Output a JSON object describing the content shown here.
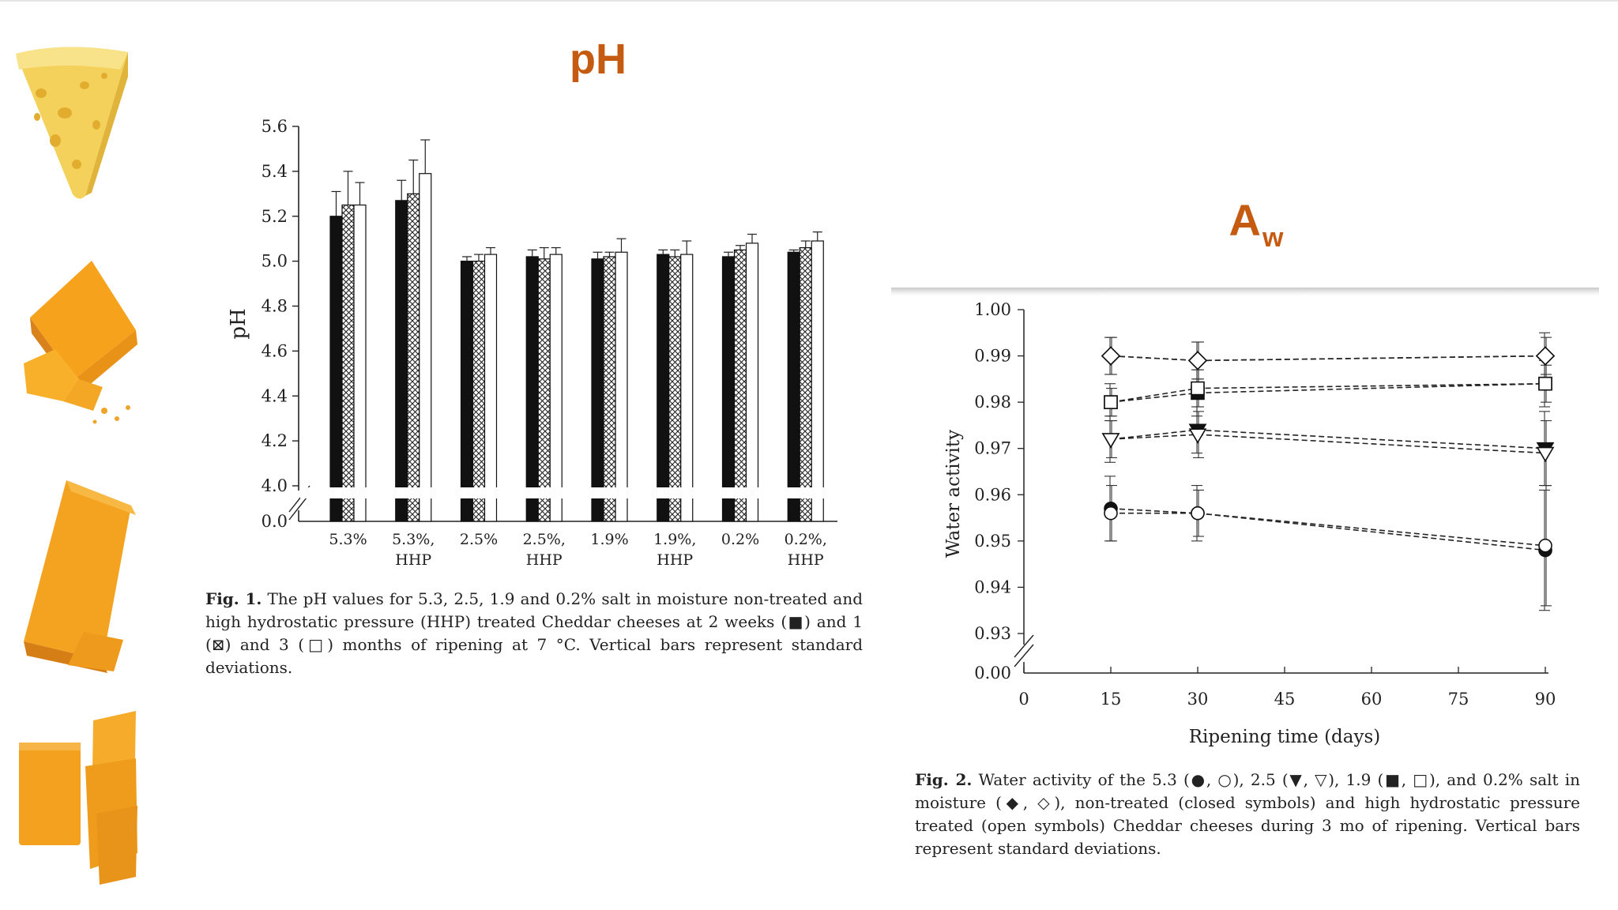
{
  "slide": {
    "title_ph": "pH",
    "title_aw_main": "A",
    "title_aw_sub": "w",
    "accent_color": "#c55a11",
    "cheese_icons": [
      "swiss-cheese-wedge-icon",
      "cheddar-block-with-crumbs-icon",
      "cheddar-slab-icon",
      "cheddar-slices-icon"
    ]
  },
  "chart_data": [
    {
      "type": "bar",
      "ylabel": "pH",
      "ylim": [
        4.0,
        5.6
      ],
      "y_ticks": [
        "5.6",
        "5.4",
        "5.2",
        "5.0",
        "4.8",
        "4.6",
        "4.4",
        "4.2",
        "4.0"
      ],
      "y_break_label": "0.0",
      "category_line1": [
        "5.3%",
        "5.3%,",
        "2.5%",
        "2.5%,",
        "1.9%",
        "1.9%,",
        "0.2%",
        "0.2%,"
      ],
      "category_line2": [
        "",
        "HHP",
        "",
        "HHP",
        "",
        "HHP",
        "",
        "HHP"
      ],
      "series": [
        {
          "name": "2 weeks",
          "pattern": "solid",
          "values": [
            5.2,
            5.27,
            5.0,
            5.02,
            5.01,
            5.03,
            5.02,
            5.04
          ],
          "sd": [
            0.11,
            0.09,
            0.02,
            0.03,
            0.03,
            0.02,
            0.02,
            0.01
          ]
        },
        {
          "name": "1 month",
          "pattern": "crosshatch",
          "values": [
            5.25,
            5.3,
            5.0,
            5.01,
            5.02,
            5.02,
            5.05,
            5.06
          ],
          "sd": [
            0.15,
            0.15,
            0.03,
            0.05,
            0.02,
            0.03,
            0.02,
            0.03
          ]
        },
        {
          "name": "3 months",
          "pattern": "open",
          "values": [
            5.25,
            5.39,
            5.03,
            5.03,
            5.04,
            5.03,
            5.08,
            5.09
          ],
          "sd": [
            0.1,
            0.15,
            0.03,
            0.03,
            0.06,
            0.06,
            0.04,
            0.04
          ]
        }
      ],
      "caption_label": "Fig. 1.",
      "caption_text_a": "The pH values for 5.3, 2.5, 1.9 and 0.2% salt in moisture non-treated and high hydrostatic pressure (HHP) treated Cheddar cheeses at 2 weeks (",
      "caption_text_b": ") and 1 (",
      "caption_text_c": ") and 3 (",
      "caption_text_d": ") months of ripening at 7 °C. Vertical bars represent standard deviations."
    },
    {
      "type": "line",
      "xlabel": "Ripening time (days)",
      "ylabel": "Water activity",
      "xlim": [
        0,
        90
      ],
      "ylim": [
        0.93,
        1.0
      ],
      "x_ticks": [
        "0",
        "15",
        "30",
        "45",
        "60",
        "75",
        "90"
      ],
      "y_ticks": [
        "1.00",
        "0.99",
        "0.98",
        "0.97",
        "0.96",
        "0.95",
        "0.94",
        "0.93"
      ],
      "y_break_label": "0.00",
      "x": [
        15,
        30,
        90
      ],
      "series": [
        {
          "name": "5.3 non-treated",
          "marker": "circle",
          "filled": true,
          "values": [
            0.957,
            0.956,
            0.948
          ],
          "sd": [
            0.007,
            0.006,
            0.013
          ]
        },
        {
          "name": "5.3 HHP",
          "marker": "circle",
          "filled": false,
          "values": [
            0.956,
            0.956,
            0.949
          ],
          "sd": [
            0.006,
            0.005,
            0.013
          ]
        },
        {
          "name": "2.5 non-treated",
          "marker": "triangle-down",
          "filled": true,
          "values": [
            0.972,
            0.974,
            0.97
          ],
          "sd": [
            0.005,
            0.005,
            0.008
          ]
        },
        {
          "name": "2.5 HHP",
          "marker": "triangle-down",
          "filled": false,
          "values": [
            0.972,
            0.973,
            0.969
          ],
          "sd": [
            0.004,
            0.005,
            0.007
          ]
        },
        {
          "name": "1.9 non-treated",
          "marker": "square",
          "filled": true,
          "values": [
            0.98,
            0.982,
            0.984
          ],
          "sd": [
            0.004,
            0.005,
            0.005
          ]
        },
        {
          "name": "1.9 HHP",
          "marker": "square",
          "filled": false,
          "values": [
            0.98,
            0.983,
            0.984
          ],
          "sd": [
            0.003,
            0.004,
            0.004
          ]
        },
        {
          "name": "0.2 non-treated",
          "marker": "diamond",
          "filled": true,
          "values": [
            0.99,
            0.989,
            0.99
          ],
          "sd": [
            0.004,
            0.004,
            0.005
          ]
        },
        {
          "name": "0.2 HHP",
          "marker": "diamond",
          "filled": false,
          "values": [
            0.99,
            0.989,
            0.99
          ],
          "sd": [
            0.004,
            0.004,
            0.004
          ]
        }
      ],
      "caption_label": "Fig. 2.",
      "caption_text": "Water activity of the 5.3 (●, ○), 2.5 (▼, ▽), 1.9 (■, □), and 0.2% salt in moisture (◆, ◇), non-treated (closed symbols) and high hydrostatic pressure treated (open symbols) Cheddar cheeses during 3 mo of ripening. Vertical bars represent standard deviations."
    }
  ]
}
